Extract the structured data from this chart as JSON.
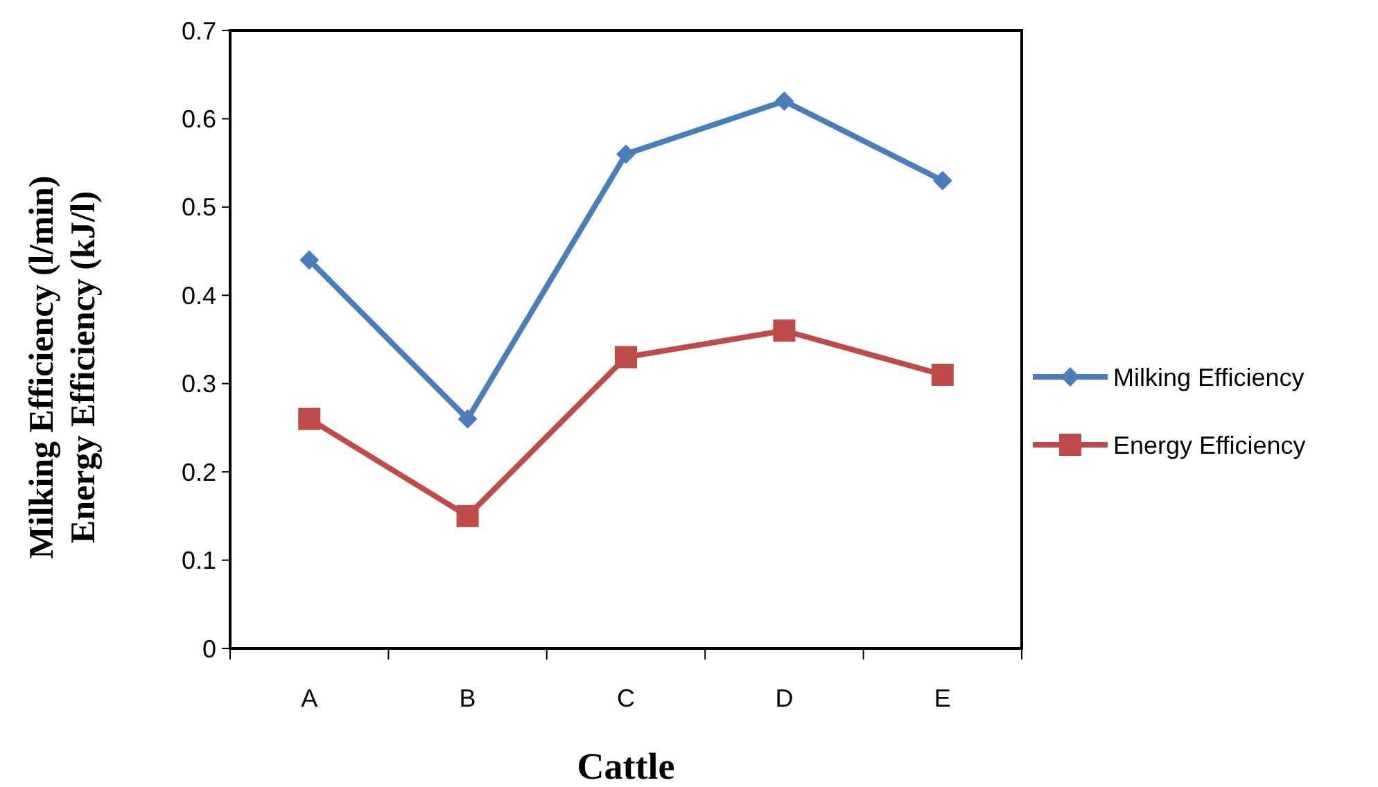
{
  "chart_data": {
    "type": "line",
    "xlabel": "Cattle",
    "ylabel": "Milking Efficiency (l/min)\nEnergy Efficiency (kJ/l)",
    "categories": [
      "A",
      "B",
      "C",
      "D",
      "E"
    ],
    "series": [
      {
        "name": "Milking Efficiency",
        "color": "#4a7ebb",
        "marker": "diamond",
        "values": [
          0.44,
          0.26,
          0.56,
          0.62,
          0.53
        ]
      },
      {
        "name": "Energy Efficiency",
        "color": "#be4b48",
        "marker": "square",
        "values": [
          0.26,
          0.15,
          0.33,
          0.36,
          0.31
        ]
      }
    ],
    "ylim": [
      0,
      0.7
    ],
    "yticks": [
      0,
      0.1,
      0.2,
      0.3,
      0.4,
      0.5,
      0.6,
      0.7
    ],
    "grid": false,
    "legend": "right",
    "line_style": "solid"
  }
}
